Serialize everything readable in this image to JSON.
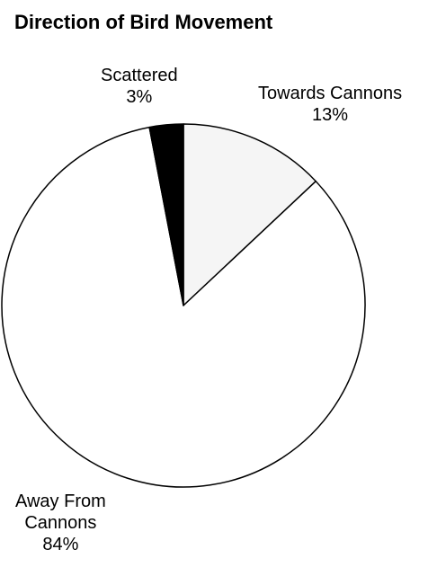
{
  "chart_data": {
    "type": "pie",
    "title": "Direction of Bird Movement",
    "slices": [
      {
        "label": "Towards Cannons",
        "label_lines": [
          "Towards Cannons"
        ],
        "value": 13,
        "value_label": "13%",
        "color": "#f5f5f5"
      },
      {
        "label": "Away From Cannons",
        "label_lines": [
          "Away From",
          "Cannons"
        ],
        "value": 84,
        "value_label": "84%",
        "color": "#ffffff"
      },
      {
        "label": "Scattered",
        "label_lines": [
          "Scattered"
        ],
        "value": 3,
        "value_label": "3%",
        "color": "#000000"
      }
    ],
    "legend": "none"
  }
}
